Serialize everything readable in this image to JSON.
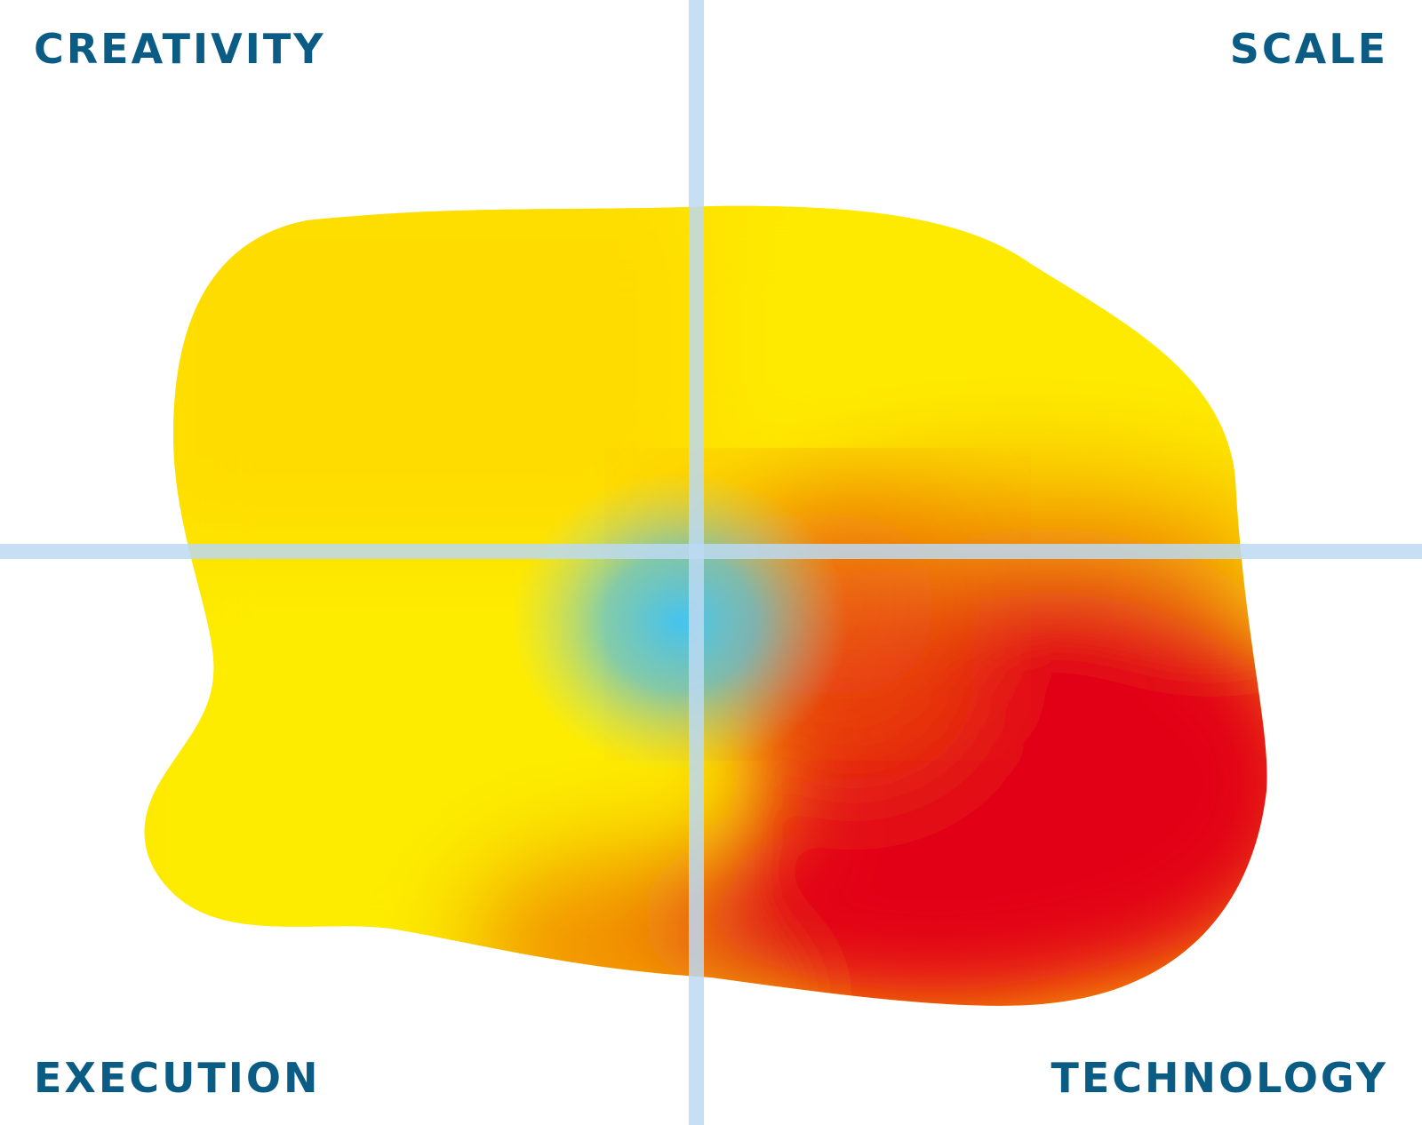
{
  "quadrants": {
    "top_left": "CREATIVITY",
    "top_right": "SCALE",
    "bottom_left": "EXECUTION",
    "bottom_right": "TECHNOLOGY"
  },
  "colors": {
    "label": "#0b5c85",
    "axis": "#bcd9f2",
    "yellow": "#fde900",
    "gold": "#fedd00",
    "orange": "#f08a00",
    "red": "#e20613",
    "blue": "#45c4ef"
  }
}
